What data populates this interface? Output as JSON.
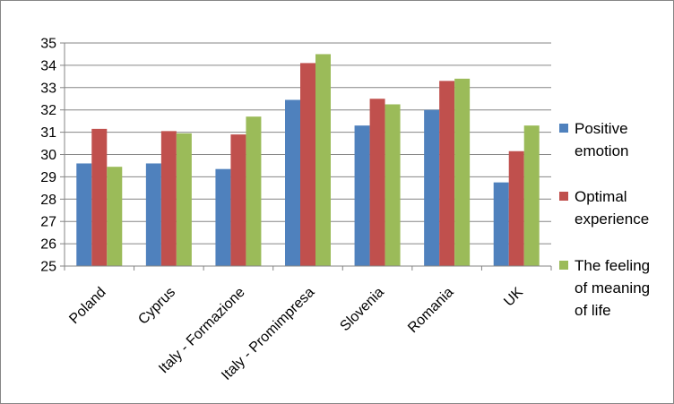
{
  "chart_data": {
    "type": "bar",
    "title": "",
    "xlabel": "",
    "ylabel": "",
    "categories": [
      "Poland",
      "Cyprus",
      "Italy - Formazione",
      "Italy - Promimpresa",
      "Slovenia",
      "Romania",
      "UK"
    ],
    "series": [
      {
        "name": "Positive emotion",
        "legend_lines": [
          "Positive",
          "emotion"
        ],
        "color": "#4F81BD",
        "values": [
          29.6,
          29.6,
          29.35,
          32.45,
          31.3,
          32.0,
          28.75
        ]
      },
      {
        "name": "Optimal experience",
        "legend_lines": [
          "Optimal",
          "experience"
        ],
        "color": "#C0504D",
        "values": [
          31.15,
          31.05,
          30.9,
          34.1,
          32.5,
          33.3,
          30.15
        ]
      },
      {
        "name": "The feeling of meaning of life",
        "legend_lines": [
          "The feeling",
          "of meaning",
          "of life"
        ],
        "color": "#9BBB59",
        "values": [
          29.45,
          30.95,
          31.7,
          34.5,
          32.25,
          33.4,
          31.3
        ]
      }
    ],
    "ylim": [
      25,
      35
    ],
    "yticks": [
      "25",
      "26",
      "27",
      "28",
      "29",
      "30",
      "31",
      "32",
      "33",
      "34",
      "35"
    ],
    "grid": true,
    "legend_position": "right"
  }
}
